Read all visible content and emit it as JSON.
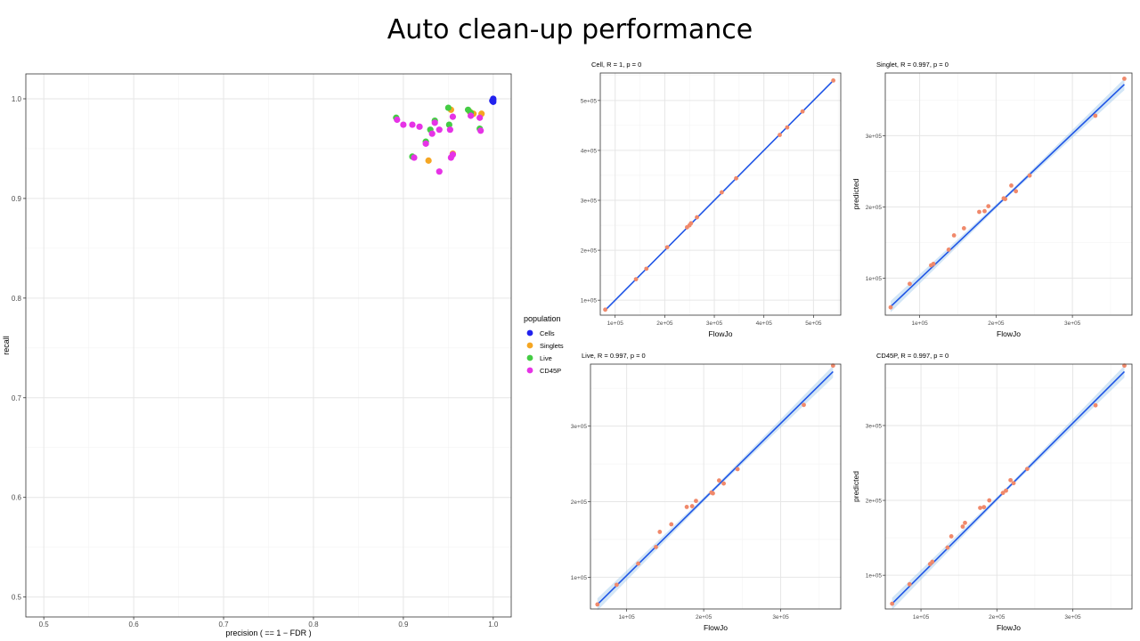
{
  "slide": {
    "title": "Auto clean-up performance"
  },
  "chart_data": [
    {
      "id": "main",
      "type": "scatter",
      "title": "",
      "xlabel": "precision ( == 1 − FDR )",
      "ylabel": "recall",
      "xlim": [
        0.48,
        1.02
      ],
      "ylim": [
        0.48,
        1.025
      ],
      "xticks": [
        "0.5",
        "0.6",
        "0.7",
        "0.8",
        "0.9",
        "1.0"
      ],
      "yticks": [
        "0.5",
        "0.6",
        "0.7",
        "0.8",
        "0.9",
        "1.0"
      ],
      "grid": true,
      "legend": {
        "title": "population",
        "placement": "right"
      },
      "series": [
        {
          "name": "Cells",
          "color": "#2222ee",
          "points": [
            [
              1.0,
              1.0
            ],
            [
              1.0,
              0.999
            ],
            [
              0.999,
              0.998
            ],
            [
              1.0,
              0.997
            ]
          ]
        },
        {
          "name": "Singlets",
          "color": "#f5a623",
          "points": [
            [
              0.928,
              0.938
            ],
            [
              0.953,
              0.989
            ],
            [
              0.987,
              0.985
            ],
            [
              0.955,
              0.945
            ],
            [
              0.978,
              0.985
            ],
            [
              0.974,
              0.987
            ]
          ]
        },
        {
          "name": "Live",
          "color": "#44cc44",
          "points": [
            [
              0.892,
              0.981
            ],
            [
              0.91,
              0.942
            ],
            [
              0.93,
              0.969
            ],
            [
              0.95,
              0.991
            ],
            [
              0.951,
              0.974
            ],
            [
              0.972,
              0.989
            ],
            [
              0.985,
              0.97
            ],
            [
              0.935,
              0.978
            ],
            [
              0.925,
              0.957
            ],
            [
              0.975,
              0.986
            ]
          ]
        },
        {
          "name": "CD45P",
          "color": "#e633e6",
          "points": [
            [
              0.893,
              0.979
            ],
            [
              0.9,
              0.974
            ],
            [
              0.91,
              0.974
            ],
            [
              0.918,
              0.972
            ],
            [
              0.925,
              0.955
            ],
            [
              0.932,
              0.965
            ],
            [
              0.935,
              0.976
            ],
            [
              0.94,
              0.969
            ],
            [
              0.94,
              0.927
            ],
            [
              0.952,
              0.969
            ],
            [
              0.953,
              0.941
            ],
            [
              0.955,
              0.982
            ],
            [
              0.975,
              0.983
            ],
            [
              0.985,
              0.981
            ],
            [
              0.986,
              0.968
            ],
            [
              0.955,
              0.944
            ],
            [
              0.912,
              0.941
            ]
          ]
        }
      ]
    },
    {
      "id": "cell",
      "type": "scatter",
      "title": "Cell, R = 1, p = 0",
      "xlabel": "FlowJo",
      "ylabel": "",
      "xlim": [
        70000,
        555000
      ],
      "ylim": [
        70000,
        555000
      ],
      "xticks": [
        [
          100000,
          "1e+05"
        ],
        [
          200000,
          "2e+05"
        ],
        [
          300000,
          "3e+05"
        ],
        [
          400000,
          "4e+05"
        ],
        [
          500000,
          "5e+05"
        ]
      ],
      "yticks": [
        [
          100000,
          "1e+05"
        ],
        [
          200000,
          "2e+05"
        ],
        [
          300000,
          "3e+05"
        ],
        [
          400000,
          "4e+05"
        ],
        [
          500000,
          "5e+05"
        ]
      ],
      "fit": [
        [
          80000,
          80000
        ],
        [
          540000,
          540000
        ]
      ],
      "band": 0,
      "points": [
        [
          80000,
          81000
        ],
        [
          142000,
          142000
        ],
        [
          163000,
          163000
        ],
        [
          205000,
          206000
        ],
        [
          245000,
          246000
        ],
        [
          250000,
          250000
        ],
        [
          253000,
          254000
        ],
        [
          265000,
          266000
        ],
        [
          315000,
          316000
        ],
        [
          344000,
          344000
        ],
        [
          432000,
          431000
        ],
        [
          447000,
          446000
        ],
        [
          478000,
          478000
        ],
        [
          540000,
          540000
        ]
      ]
    },
    {
      "id": "singlet",
      "type": "scatter",
      "title": "Singlet, R = 0.997, p = 0",
      "xlabel": "FlowJo",
      "ylabel": "predicted",
      "xlim": [
        55000,
        378000
      ],
      "ylim": [
        48000,
        388000
      ],
      "xticks": [
        [
          100000,
          "1e+05"
        ],
        [
          200000,
          "2e+05"
        ],
        [
          300000,
          "3e+05"
        ]
      ],
      "yticks": [
        [
          100000,
          "1e+05"
        ],
        [
          200000,
          "2e+05"
        ],
        [
          300000,
          "3e+05"
        ]
      ],
      "fit": [
        [
          62000,
          60000
        ],
        [
          368000,
          372000
        ]
      ],
      "band": 8000,
      "points": [
        [
          62000,
          59000
        ],
        [
          87000,
          92000
        ],
        [
          115000,
          118000
        ],
        [
          118000,
          120000
        ],
        [
          138000,
          140000
        ],
        [
          145000,
          160000
        ],
        [
          158000,
          170000
        ],
        [
          178000,
          193000
        ],
        [
          185000,
          194000
        ],
        [
          190000,
          201000
        ],
        [
          210000,
          212000
        ],
        [
          212000,
          211000
        ],
        [
          220000,
          230000
        ],
        [
          226000,
          222000
        ],
        [
          244000,
          244000
        ],
        [
          330000,
          328000
        ],
        [
          368000,
          380000
        ]
      ]
    },
    {
      "id": "live",
      "type": "scatter",
      "title": "Live, R = 0.997, p = 0",
      "xlabel": "FlowJo",
      "ylabel": "",
      "xlim": [
        53000,
        378000
      ],
      "ylim": [
        58000,
        382000
      ],
      "xticks": [
        [
          100000,
          "1e+05"
        ],
        [
          200000,
          "2e+05"
        ],
        [
          300000,
          "3e+05"
        ]
      ],
      "yticks": [
        [
          100000,
          "1e+05"
        ],
        [
          200000,
          "2e+05"
        ],
        [
          300000,
          "3e+05"
        ]
      ],
      "fit": [
        [
          62000,
          64000
        ],
        [
          368000,
          372000
        ]
      ],
      "band": 8000,
      "points": [
        [
          62000,
          64000
        ],
        [
          87000,
          90000
        ],
        [
          115000,
          118000
        ],
        [
          138000,
          140000
        ],
        [
          143000,
          160000
        ],
        [
          158000,
          170000
        ],
        [
          178000,
          193000
        ],
        [
          185000,
          194000
        ],
        [
          190000,
          201000
        ],
        [
          210000,
          212000
        ],
        [
          212000,
          211000
        ],
        [
          220000,
          228000
        ],
        [
          226000,
          224000
        ],
        [
          244000,
          243000
        ],
        [
          330000,
          328000
        ],
        [
          368000,
          380000
        ]
      ]
    },
    {
      "id": "cd45p",
      "type": "scatter",
      "title": "CD45P, R = 0.997, p = 0",
      "xlabel": "FlowJo",
      "ylabel": "predicted",
      "xlim": [
        53000,
        378000
      ],
      "ylim": [
        55000,
        382000
      ],
      "xticks": [
        [
          100000,
          "1e+05"
        ],
        [
          200000,
          "2e+05"
        ],
        [
          300000,
          "3e+05"
        ]
      ],
      "yticks": [
        [
          100000,
          "1e+05"
        ],
        [
          200000,
          "2e+05"
        ],
        [
          300000,
          "3e+05"
        ]
      ],
      "fit": [
        [
          62000,
          62000
        ],
        [
          368000,
          372000
        ]
      ],
      "band": 8000,
      "points": [
        [
          62000,
          62000
        ],
        [
          85000,
          88000
        ],
        [
          112000,
          115000
        ],
        [
          115000,
          118000
        ],
        [
          135000,
          137000
        ],
        [
          140000,
          152000
        ],
        [
          158000,
          170000
        ],
        [
          155000,
          165000
        ],
        [
          178000,
          190000
        ],
        [
          183000,
          191000
        ],
        [
          190000,
          200000
        ],
        [
          208000,
          210000
        ],
        [
          212000,
          213000
        ],
        [
          218000,
          227000
        ],
        [
          222000,
          223000
        ],
        [
          240000,
          242000
        ],
        [
          330000,
          327000
        ],
        [
          368000,
          380000
        ]
      ]
    }
  ]
}
